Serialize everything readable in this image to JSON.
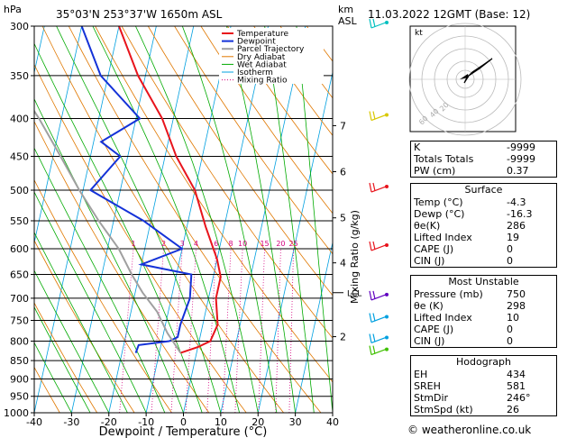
{
  "header": {
    "location": "35°03'N  253°37'W  1650m  ASL",
    "time": "11.03.2022  12GMT  (Base: 12)",
    "hpa": "hPa",
    "km": "km",
    "asl": "ASL"
  },
  "chart_data": {
    "type": "line",
    "xlabel": "Dewpoint / Temperature (°C)",
    "ylabel": "Mixing Ratio (g/kg)",
    "xlim": [
      -40,
      40
    ],
    "ylim": [
      1000,
      300
    ],
    "x_ticks": [
      "-40",
      "-30",
      "-20",
      "-10",
      "0",
      "10",
      "20",
      "30",
      "40"
    ],
    "pressure_ticks": [
      "300",
      "350",
      "400",
      "450",
      "500",
      "550",
      "600",
      "650",
      "700",
      "750",
      "800",
      "850",
      "900",
      "950",
      "1000"
    ],
    "km_ticks": [
      {
        "p": 409,
        "label": "7"
      },
      {
        "p": 472,
        "label": "6"
      },
      {
        "p": 545,
        "label": "5"
      },
      {
        "p": 627,
        "label": "4"
      },
      {
        "p": 789,
        "label": "2"
      }
    ],
    "lcl": {
      "p": 688,
      "label": "LCL"
    },
    "mixing_ratio_labels": [
      "1",
      "2",
      "3",
      "4",
      "6",
      "8",
      "10",
      "15",
      "20",
      "25"
    ],
    "legend": [
      "Temperature",
      "Dewpoint",
      "Parcel Trajectory",
      "Dry Adiabat",
      "Wet Adiabat",
      "Isotherm",
      "Mixing Ratio"
    ],
    "colors": {
      "temperature": "#e8141c",
      "dewpoint": "#1432d8",
      "parcel": "#a0a0a0",
      "dry_adiabat": "#e07800",
      "wet_adiabat": "#00aa00",
      "isotherm": "#00a0e0",
      "mixing_ratio": "#d4007e"
    },
    "series": [
      {
        "name": "Temperature",
        "points": [
          [
            -4.3,
            830
          ],
          [
            0,
            815
          ],
          [
            3,
            800
          ],
          [
            4,
            760
          ],
          [
            2,
            700
          ],
          [
            2,
            655
          ],
          [
            0,
            620
          ],
          [
            -5,
            560
          ],
          [
            -10,
            500
          ],
          [
            -17,
            450
          ],
          [
            -23,
            400
          ],
          [
            -32,
            350
          ],
          [
            -40,
            300
          ]
        ]
      },
      {
        "name": "Dewpoint",
        "points": [
          [
            -16.3,
            830
          ],
          [
            -16,
            810
          ],
          [
            -8,
            800
          ],
          [
            -6,
            790
          ],
          [
            -6,
            760
          ],
          [
            -5,
            700
          ],
          [
            -6,
            650
          ],
          [
            -20,
            630
          ],
          [
            -10,
            600
          ],
          [
            -22,
            550
          ],
          [
            -38,
            500
          ],
          [
            -32,
            450
          ],
          [
            -38,
            430
          ],
          [
            -29,
            400
          ],
          [
            -42,
            350
          ],
          [
            -50,
            300
          ]
        ]
      },
      {
        "name": "Parcel Trajectory",
        "points": [
          [
            -4.3,
            830
          ],
          [
            -9,
            780
          ],
          [
            -13,
            730
          ],
          [
            -18,
            688
          ],
          [
            -22,
            650
          ],
          [
            -27,
            600
          ],
          [
            -34,
            550
          ],
          [
            -41,
            500
          ],
          [
            -48,
            450
          ],
          [
            -56,
            400
          ],
          [
            -66,
            350
          ],
          [
            -77,
            300
          ]
        ]
      }
    ]
  },
  "hodograph": {
    "label": "kt",
    "rings": [
      "20",
      "40",
      "60",
      "80"
    ]
  },
  "stats": {
    "k_label": "K",
    "k_value": "-9999",
    "tt_label": "Totals Totals",
    "tt_value": "-9999",
    "pw_label": "PW (cm)",
    "pw_value": "0.37",
    "surface_title": "Surface",
    "temp_label": "Temp (°C)",
    "temp_value": "-4.3",
    "dewp_label": "Dewp (°C)",
    "dewp_value": "-16.3",
    "thetae_label": "θe(K)",
    "thetae_value": "286",
    "li_label": "Lifted Index",
    "li_value": "19",
    "cape_label": "CAPE (J)",
    "cape_value": "0",
    "cin_label": "CIN (J)",
    "cin_value": "0",
    "mu_title": "Most Unstable",
    "mu_pres_label": "Pressure (mb)",
    "mu_pres_value": "750",
    "mu_thetae_label": "θe (K)",
    "mu_thetae_value": "298",
    "mu_li_label": "Lifted Index",
    "mu_li_value": "10",
    "mu_cape_label": "CAPE (J)",
    "mu_cape_value": "0",
    "mu_cin_label": "CIN (J)",
    "mu_cin_value": "0",
    "hodo_title": "Hodograph",
    "eh_label": "EH",
    "eh_value": "434",
    "sreh_label": "SREH",
    "sreh_value": "581",
    "stmdir_label": "StmDir",
    "stmdir_value": "246°",
    "stmspd_label": "StmSpd (kt)",
    "stmspd_value": "26"
  },
  "copyright": "© weatheronline.co.uk"
}
